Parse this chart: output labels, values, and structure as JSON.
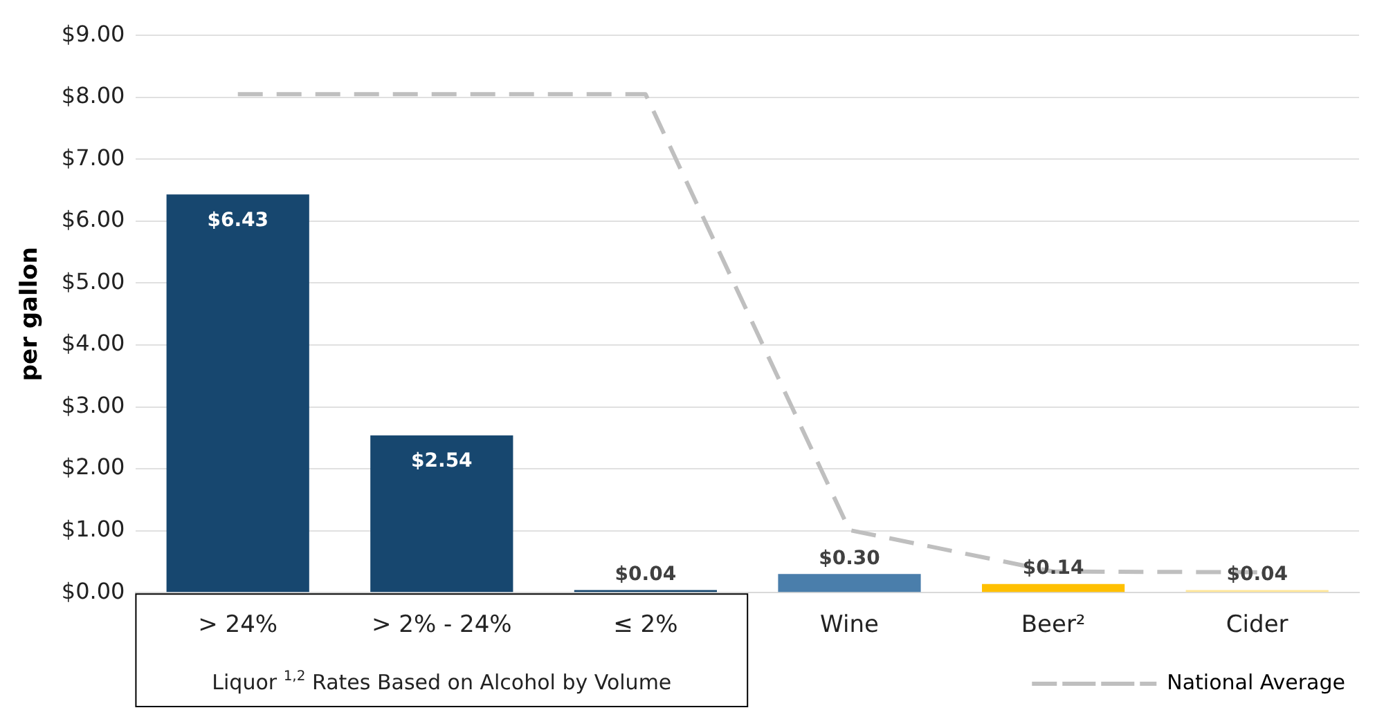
{
  "chart_data": {
    "type": "bar",
    "ylabel": "per gallon",
    "categories": [
      "> 24%",
      "> 2% - 24%",
      "≤ 2%",
      "Wine",
      "Beer²",
      "Cider"
    ],
    "series": [
      {
        "values": [
          6.43,
          2.54,
          0.04,
          0.3,
          0.14,
          0.04
        ],
        "colors": [
          "#17476f",
          "#17476f",
          "#17476f",
          "#4a7eab",
          "#ffc000",
          "#ffe699"
        ],
        "value_labels": [
          "$6.43",
          "$2.54",
          "$0.04",
          "$0.30",
          "$0.14",
          "$0.04"
        ]
      },
      {
        "type": "line",
        "name": "National Average",
        "color": "#bfbfbf",
        "line_style": "dashed",
        "marker": "none",
        "values": [
          8.05,
          8.05,
          8.05,
          1.01,
          0.34,
          0.33
        ]
      }
    ],
    "ylim": [
      0,
      9
    ],
    "yticks": [
      {
        "value": 0,
        "label": "$0.00"
      },
      {
        "value": 1,
        "label": "$1.00"
      },
      {
        "value": 2,
        "label": "$2.00"
      },
      {
        "value": 3,
        "label": "$3.00"
      },
      {
        "value": 4,
        "label": "$4.00"
      },
      {
        "value": 5,
        "label": "$5.00"
      },
      {
        "value": 6,
        "label": "$6.00"
      },
      {
        "value": 7,
        "label": "$7.00"
      },
      {
        "value": 8,
        "label": "$8.00"
      },
      {
        "value": 9,
        "label": "$9.00"
      }
    ],
    "grid": "y",
    "legend": "bottom right",
    "annotations": [
      "Liquor $^{1,2}$ Rates Based on Alcohol by Volume"
    ]
  }
}
